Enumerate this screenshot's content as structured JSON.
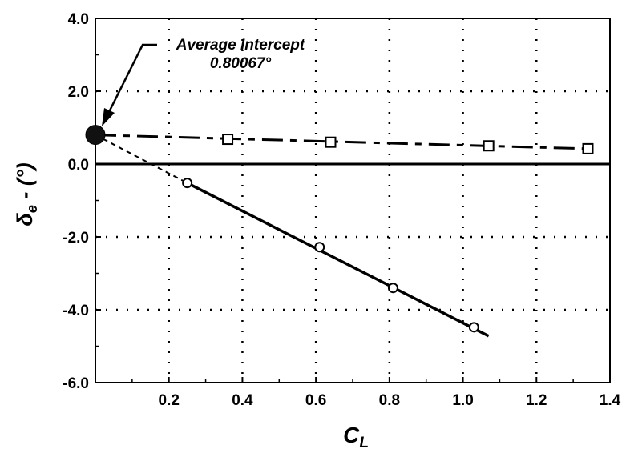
{
  "chart_data": {
    "type": "line",
    "xlabel": "C",
    "xlabel_sub": "L",
    "ylabel": "δ",
    "ylabel_sub": "e",
    "ylabel_suffix": " - (°)",
    "xlim": [
      0,
      1.4
    ],
    "ylim": [
      -6.0,
      4.0
    ],
    "x_ticks": [
      "0.2",
      "0.4",
      "0.6",
      "0.8",
      "1.0",
      "1.2",
      "1.4"
    ],
    "y_ticks": [
      "4.0",
      "2.0",
      "0.0",
      "-2.0",
      "-4.0",
      "-6.0"
    ],
    "grid": true,
    "annotation": {
      "line1": "Average Intercept",
      "line2": "0.80067°",
      "x": 0,
      "y": 0.80067
    },
    "series": [
      {
        "marker": "square",
        "line_style": "long-dash",
        "points": [
          [
            0.36,
            0.68
          ],
          [
            0.64,
            0.6
          ],
          [
            1.07,
            0.5
          ],
          [
            1.34,
            0.42
          ]
        ],
        "fit": [
          [
            0.0,
            0.8
          ],
          [
            1.34,
            0.42
          ]
        ]
      },
      {
        "marker": "circle",
        "line_style": "solid",
        "points": [
          [
            0.25,
            -0.52
          ],
          [
            0.61,
            -2.28
          ],
          [
            0.81,
            -3.4
          ],
          [
            1.03,
            -4.48
          ]
        ],
        "fit": [
          [
            0.25,
            -0.52
          ],
          [
            1.07,
            -4.72
          ]
        ],
        "extrapolation": [
          [
            0.0,
            0.8
          ],
          [
            0.25,
            -0.52
          ]
        ]
      }
    ]
  }
}
